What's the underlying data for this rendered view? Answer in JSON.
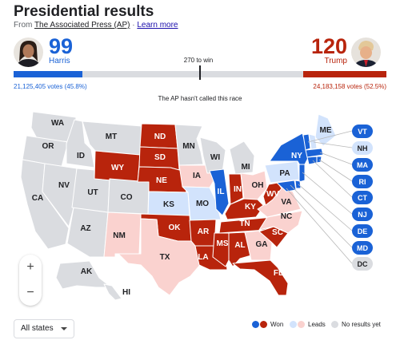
{
  "header": {
    "title": "Presidential results",
    "source_prefix": "From",
    "source_name": "The Associated Press (AP)",
    "source_sep": "·",
    "learn_more": "Learn more"
  },
  "race": {
    "to_win_label": "270 to win",
    "status_text": "The AP hasn't called this race",
    "total_electoral_votes": 538,
    "to_win": 270
  },
  "candidates": {
    "harris": {
      "name": "Harris",
      "electoral_votes": "99",
      "ev_value": 99,
      "votes_text": "21,125,405 votes (45.8%)",
      "color": "#1a62d6"
    },
    "trump": {
      "name": "Trump",
      "electoral_votes": "120",
      "ev_value": 120,
      "votes_text": "24,183,158 votes (52.5%)",
      "color": "#b8240c"
    }
  },
  "map": {
    "states": {
      "WA": "none",
      "OR": "none",
      "CA": "none",
      "ID": "none",
      "NV": "none",
      "AZ": "none",
      "UT": "none",
      "MT": "none",
      "WY": "won-r",
      "CO": "none",
      "NM": "lead-r",
      "ND": "won-r",
      "SD": "won-r",
      "NE": "won-r",
      "KS": "lead-d",
      "OK": "won-r",
      "TX": "lead-r",
      "MN": "none",
      "IA": "lead-r",
      "MO": "lead-d",
      "AR": "won-r",
      "LA": "won-r",
      "WI": "none",
      "IL": "won-d",
      "MI": "none",
      "IN": "won-r",
      "OH": "lead-r",
      "KY": "won-r",
      "TN": "won-r",
      "MS": "won-r",
      "AL": "won-r",
      "GA": "lead-r",
      "FL": "won-r",
      "SC": "won-r",
      "NC": "lead-r",
      "VA": "lead-r",
      "WV": "won-r",
      "PA": "lead-d",
      "NY": "won-d",
      "ME": "lead-d",
      "AK": "none",
      "HI": "none"
    },
    "small_states": [
      {
        "code": "VT",
        "status": "won-d"
      },
      {
        "code": "NH",
        "status": "lead-d"
      },
      {
        "code": "MA",
        "status": "won-d"
      },
      {
        "code": "RI",
        "status": "won-d"
      },
      {
        "code": "CT",
        "status": "won-d"
      },
      {
        "code": "NJ",
        "status": "won-d"
      },
      {
        "code": "DE",
        "status": "won-d"
      },
      {
        "code": "MD",
        "status": "won-d"
      },
      {
        "code": "DC",
        "status": "none"
      }
    ]
  },
  "controls": {
    "zoom_in": "+",
    "zoom_out": "−",
    "region_select": "All states"
  },
  "legend": {
    "won": "Won",
    "leads": "Leads",
    "no_results": "No results yet"
  },
  "colors": {
    "won-d": "#1a62d6",
    "lead-d": "#d2e3fc",
    "won-r": "#b8240c",
    "lead-r": "#fad2cf",
    "none": "#dadce0",
    "bar_track": "#dadce0"
  }
}
